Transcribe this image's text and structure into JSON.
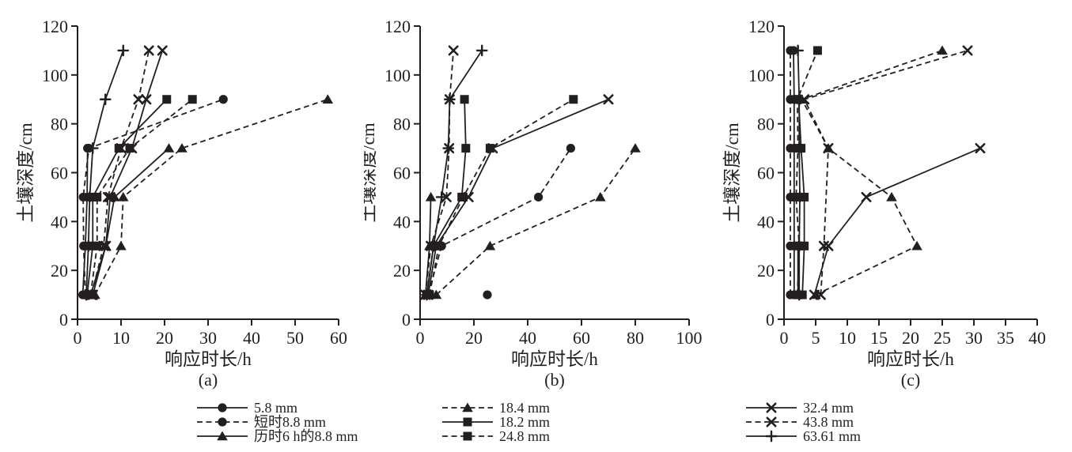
{
  "figure": {
    "background": "#ffffff",
    "ink_color": "#231f20",
    "x_axis_label": "响应时长/h",
    "y_axis_label": "土壤深度/cm",
    "panel_labels": [
      "(a)",
      "(b)",
      "(c)"
    ]
  },
  "chart_data": [
    {
      "type": "line",
      "panel": "(a)",
      "xlabel": "响应时长/h",
      "ylabel": "土壤深度/cm",
      "xlim": [
        0,
        60
      ],
      "xticks": [
        0,
        10,
        20,
        30,
        40,
        50,
        60
      ],
      "ylim": [
        0,
        120
      ],
      "yticks": [
        0,
        20,
        40,
        60,
        80,
        100,
        120
      ],
      "grid": false,
      "series": [
        {
          "name": "5.8 mm",
          "marker": "circle",
          "line": "solid",
          "points": [
            [
              1.2,
              10
            ],
            [
              1.8,
              30
            ],
            [
              2.2,
              50
            ],
            [
              2.3,
              70
            ]
          ]
        },
        {
          "name": "短时8.8 mm",
          "marker": "circle",
          "line": "dashed",
          "points": [
            [
              1.8,
              10
            ],
            [
              1.4,
              30
            ],
            [
              1.3,
              50
            ],
            [
              2.6,
              70
            ],
            [
              33.5,
              90
            ]
          ]
        },
        {
          "name": "历时6 h的8.8 mm",
          "marker": "triangle",
          "line": "solid",
          "points": [
            [
              3,
              10
            ],
            [
              6.5,
              30
            ],
            [
              8.5,
              50
            ],
            [
              21,
              70
            ]
          ]
        },
        {
          "name": "18.4 mm",
          "marker": "triangle",
          "line": "dashed",
          "points": [
            [
              4,
              10
            ],
            [
              10,
              30
            ],
            [
              10.5,
              50
            ],
            [
              24,
              70
            ],
            [
              57.5,
              90
            ]
          ]
        },
        {
          "name": "18.2 mm",
          "marker": "square",
          "line": "solid",
          "points": [
            [
              2.2,
              10
            ],
            [
              3.5,
              30
            ],
            [
              3.5,
              50
            ],
            [
              9.5,
              70
            ],
            [
              20.5,
              90
            ]
          ]
        },
        {
          "name": "24.8 mm",
          "marker": "square",
          "line": "dashed",
          "points": [
            [
              3,
              10
            ],
            [
              4.5,
              30
            ],
            [
              4.5,
              50
            ],
            [
              12,
              70
            ],
            [
              26.4,
              90
            ]
          ]
        },
        {
          "name": "32.4 mm",
          "marker": "x",
          "line": "solid",
          "points": [
            [
              3.5,
              10
            ],
            [
              6.5,
              30
            ],
            [
              7.5,
              50
            ],
            [
              12.5,
              70
            ],
            [
              15.8,
              90
            ],
            [
              19.5,
              110
            ]
          ]
        },
        {
          "name": "43.8 mm",
          "marker": "x",
          "line": "dashed",
          "points": [
            [
              3.2,
              10
            ],
            [
              6,
              30
            ],
            [
              7,
              50
            ],
            [
              10,
              70
            ],
            [
              14,
              90
            ],
            [
              16.4,
              110
            ]
          ]
        },
        {
          "name": "63.61 mm",
          "marker": "plus",
          "line": "solid",
          "points": [
            [
              2,
              10
            ],
            [
              2.5,
              30
            ],
            [
              2.8,
              50
            ],
            [
              3.5,
              70
            ],
            [
              6.4,
              90
            ],
            [
              10.5,
              110
            ]
          ]
        }
      ]
    },
    {
      "type": "line",
      "panel": "(b)",
      "xlabel": "响应时长/h",
      "ylabel": "土壤深度/cm",
      "xlim": [
        0,
        100
      ],
      "xticks": [
        0,
        20,
        40,
        60,
        80,
        100
      ],
      "ylim": [
        0,
        120
      ],
      "yticks": [
        0,
        20,
        40,
        60,
        80,
        100,
        120
      ],
      "grid": false,
      "series": [
        {
          "name": "5.8 mm",
          "marker": "circle",
          "line": "solid",
          "points": [
            [
              25,
              10
            ]
          ]
        },
        {
          "name": "短时8.8 mm",
          "marker": "circle",
          "line": "dashed",
          "points": [
            [
              3,
              10
            ],
            [
              8,
              30
            ],
            [
              44,
              50
            ],
            [
              56,
              70
            ]
          ]
        },
        {
          "name": "历时6 h的8.8 mm",
          "marker": "triangle",
          "line": "solid",
          "points": [
            [
              2,
              10
            ],
            [
              3.5,
              30
            ],
            [
              4,
              50
            ]
          ]
        },
        {
          "name": "18.4 mm",
          "marker": "triangle",
          "line": "dashed",
          "points": [
            [
              6,
              10
            ],
            [
              26,
              30
            ],
            [
              67,
              50
            ],
            [
              80,
              70
            ]
          ]
        },
        {
          "name": "18.2 mm",
          "marker": "square",
          "line": "solid",
          "points": [
            [
              2.5,
              10
            ],
            [
              5,
              30
            ],
            [
              15.5,
              50
            ],
            [
              17,
              70
            ],
            [
              16.5,
              90
            ]
          ]
        },
        {
          "name": "24.8 mm",
          "marker": "square",
          "line": "dashed",
          "points": [
            [
              3.5,
              10
            ],
            [
              7,
              30
            ],
            [
              16,
              50
            ],
            [
              26,
              70
            ],
            [
              57,
              90
            ]
          ]
        },
        {
          "name": "32.4 mm",
          "marker": "x",
          "line": "solid",
          "points": [
            [
              3,
              10
            ],
            [
              6,
              30
            ],
            [
              18,
              50
            ],
            [
              27,
              70
            ],
            [
              70,
              90
            ]
          ]
        },
        {
          "name": "43.8 mm",
          "marker": "x",
          "line": "dashed",
          "points": [
            [
              2,
              10
            ],
            [
              4,
              30
            ],
            [
              9.8,
              50
            ],
            [
              10.8,
              70
            ],
            [
              11,
              90
            ],
            [
              12.4,
              110
            ]
          ]
        },
        {
          "name": "63.61 mm",
          "marker": "plus",
          "line": "solid",
          "points": [
            [
              2.5,
              10
            ],
            [
              5,
              30
            ],
            [
              8,
              50
            ],
            [
              10.5,
              70
            ],
            [
              11,
              90
            ],
            [
              23,
              110
            ]
          ]
        }
      ]
    },
    {
      "type": "line",
      "panel": "(c)",
      "xlabel": "响应时长/h",
      "ylabel": "土壤深度/cm",
      "xlim": [
        0,
        40
      ],
      "xticks": [
        0,
        5,
        10,
        15,
        20,
        25,
        30,
        35,
        40
      ],
      "ylim": [
        0,
        120
      ],
      "yticks": [
        0,
        20,
        40,
        60,
        80,
        100,
        120
      ],
      "grid": false,
      "series": [
        {
          "name": "5.8 mm",
          "marker": "circle",
          "line": "solid",
          "points": [
            [
              1.6,
              10
            ],
            [
              1.6,
              30
            ],
            [
              1.6,
              50
            ],
            [
              1.6,
              70
            ],
            [
              1.6,
              90
            ],
            [
              1.5,
              110
            ]
          ]
        },
        {
          "name": "短时8.8 mm",
          "marker": "circle",
          "line": "dashed",
          "points": [
            [
              1,
              10
            ],
            [
              1,
              30
            ],
            [
              1,
              50
            ],
            [
              1,
              70
            ],
            [
              1,
              90
            ],
            [
              1,
              110
            ]
          ]
        },
        {
          "name": "历时6 h的8.8 mm",
          "marker": "triangle",
          "line": "solid",
          "points": [
            [
              2.2,
              10
            ],
            [
              2.2,
              30
            ]
          ]
        },
        {
          "name": "18.4 mm",
          "marker": "triangle",
          "line": "dashed",
          "points": [
            [
              5,
              10
            ],
            [
              21,
              30
            ],
            [
              17,
              50
            ],
            [
              7,
              70
            ],
            [
              2.8,
              90
            ],
            [
              25,
              110
            ]
          ]
        },
        {
          "name": "18.2 mm",
          "marker": "square",
          "line": "solid",
          "points": [
            [
              2.9,
              10
            ],
            [
              3.2,
              30
            ],
            [
              3.2,
              50
            ],
            [
              2.7,
              70
            ],
            [
              2.3,
              90
            ]
          ]
        },
        {
          "name": "24.8 mm",
          "marker": "square",
          "line": "dashed",
          "points": [
            [
              2.1,
              10
            ],
            [
              2.4,
              30
            ],
            [
              1.9,
              50
            ],
            [
              2.2,
              70
            ],
            [
              2.1,
              90
            ],
            [
              5.3,
              110
            ]
          ]
        },
        {
          "name": "32.4 mm",
          "marker": "x",
          "line": "solid",
          "points": [
            [
              4.8,
              10
            ],
            [
              7,
              30
            ],
            [
              13,
              50
            ],
            [
              31,
              70
            ]
          ]
        },
        {
          "name": "43.8 mm",
          "marker": "x",
          "line": "dashed",
          "points": [
            [
              5.8,
              10
            ],
            [
              6.3,
              30
            ],
            [
              7,
              70
            ],
            [
              3.2,
              90
            ],
            [
              29,
              110
            ]
          ]
        },
        {
          "name": "63.61 mm",
          "marker": "plus",
          "line": "solid",
          "points": [
            [
              2.4,
              10
            ],
            [
              2.4,
              30
            ],
            [
              2.5,
              50
            ],
            [
              2.4,
              70
            ],
            [
              2.4,
              90
            ],
            [
              2.2,
              110
            ]
          ]
        }
      ]
    }
  ],
  "legend": {
    "columns": [
      [
        {
          "label": "5.8 mm",
          "marker": "circle",
          "line": "solid"
        },
        {
          "label": "短时8.8 mm",
          "marker": "circle",
          "line": "dashed"
        },
        {
          "label": "历时6 h的8.8 mm",
          "marker": "triangle",
          "line": "solid"
        }
      ],
      [
        {
          "label": "18.4 mm",
          "marker": "triangle",
          "line": "dashed"
        },
        {
          "label": "18.2 mm",
          "marker": "square",
          "line": "solid"
        },
        {
          "label": "24.8 mm",
          "marker": "square",
          "line": "dashed"
        }
      ],
      [
        {
          "label": "32.4 mm",
          "marker": "x",
          "line": "solid"
        },
        {
          "label": "43.8 mm",
          "marker": "x",
          "line": "dashed"
        },
        {
          "label": "63.61 mm",
          "marker": "plus",
          "line": "solid"
        }
      ]
    ]
  }
}
